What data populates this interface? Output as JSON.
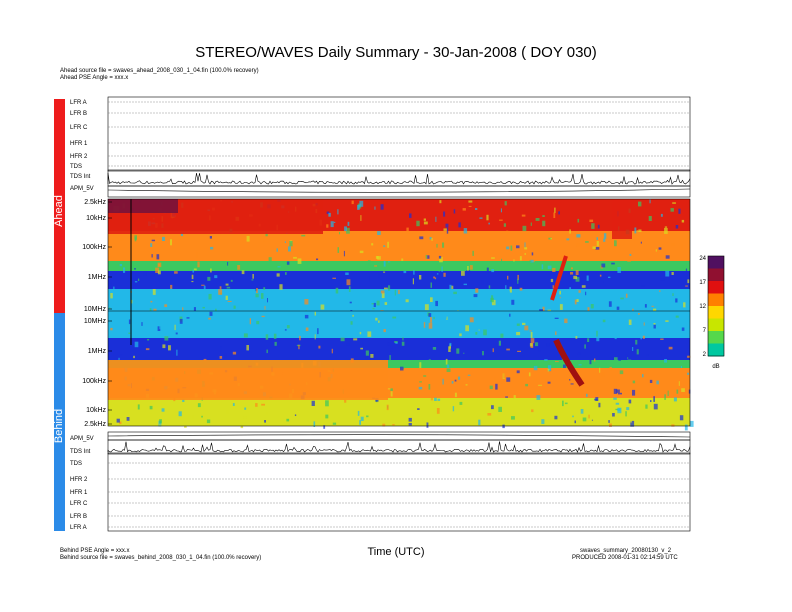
{
  "title": "STEREO/WAVES Daily Summary - 30-Jan-2008 ( DOY 030)",
  "header_lines": [
    "Ahead source file = swaves_ahead_2008_030_1_04.fin (100.0% recovery)",
    "Ahead PSE Angle = xxx.x"
  ],
  "footer_left": [
    "Behind PSE Angle = xxx.x",
    "Behind source file = swaves_behind_2008_030_1_04.fin (100.0% recovery)"
  ],
  "footer_right": [
    "swaves_summary_20080130_v_2",
    "PRODUCED 2008-01-31 02:14:59 UTC"
  ],
  "xlabel": "Time (UTC)",
  "side_labels": {
    "ahead": "Ahead",
    "behind": "Behind"
  },
  "ahead_rows": [
    "LFR A",
    "LFR B",
    "LFR C",
    "HFR 1",
    "HFR 2",
    "TDS",
    "TDS Int",
    "APM_5V"
  ],
  "behind_rows": [
    "APM_5V",
    "TDS Int",
    "TDS",
    "HFR 2",
    "HFR 1",
    "LFR C",
    "LFR B",
    "LFR A"
  ],
  "ahead_freq_ticks": [
    "2.5kHz",
    "10kHz",
    "100kHz",
    "1MHz",
    "10MHz"
  ],
  "behind_freq_ticks": [
    "10MHz",
    "1MHz",
    "100kHz",
    "10kHz",
    "2.5kHz"
  ],
  "colorbar": {
    "ticks": [
      "24",
      "17",
      "12",
      "7",
      "2"
    ],
    "unit": "dB",
    "colors": [
      "#00c8a0",
      "#55d84b",
      "#c8e600",
      "#ffd700",
      "#ff8000",
      "#e01010",
      "#901030",
      "#501060"
    ]
  },
  "colors": {
    "blue": "#1a2fd8",
    "cyan": "#22b8e8",
    "green": "#3cc860",
    "yellow": "#d8e020",
    "orange": "#ff8a1a",
    "red": "#e02010"
  },
  "chart_data": {
    "type": "heatmap",
    "title": "STEREO/WAVES Daily Summary - 30-Jan-2008 ( DOY 030)",
    "xlabel": "Time (UTC)",
    "ylabel": "",
    "colorbar_range": [
      2,
      24
    ],
    "colorbar_unit": "dB",
    "panels": [
      {
        "name": "Ahead",
        "yticks": [
          "2.5kHz",
          "10kHz",
          "100kHz",
          "1MHz",
          "10MHz"
        ]
      },
      {
        "name": "Behind",
        "yticks": [
          "10MHz",
          "1MHz",
          "100kHz",
          "10kHz",
          "2.5kHz"
        ]
      }
    ]
  }
}
